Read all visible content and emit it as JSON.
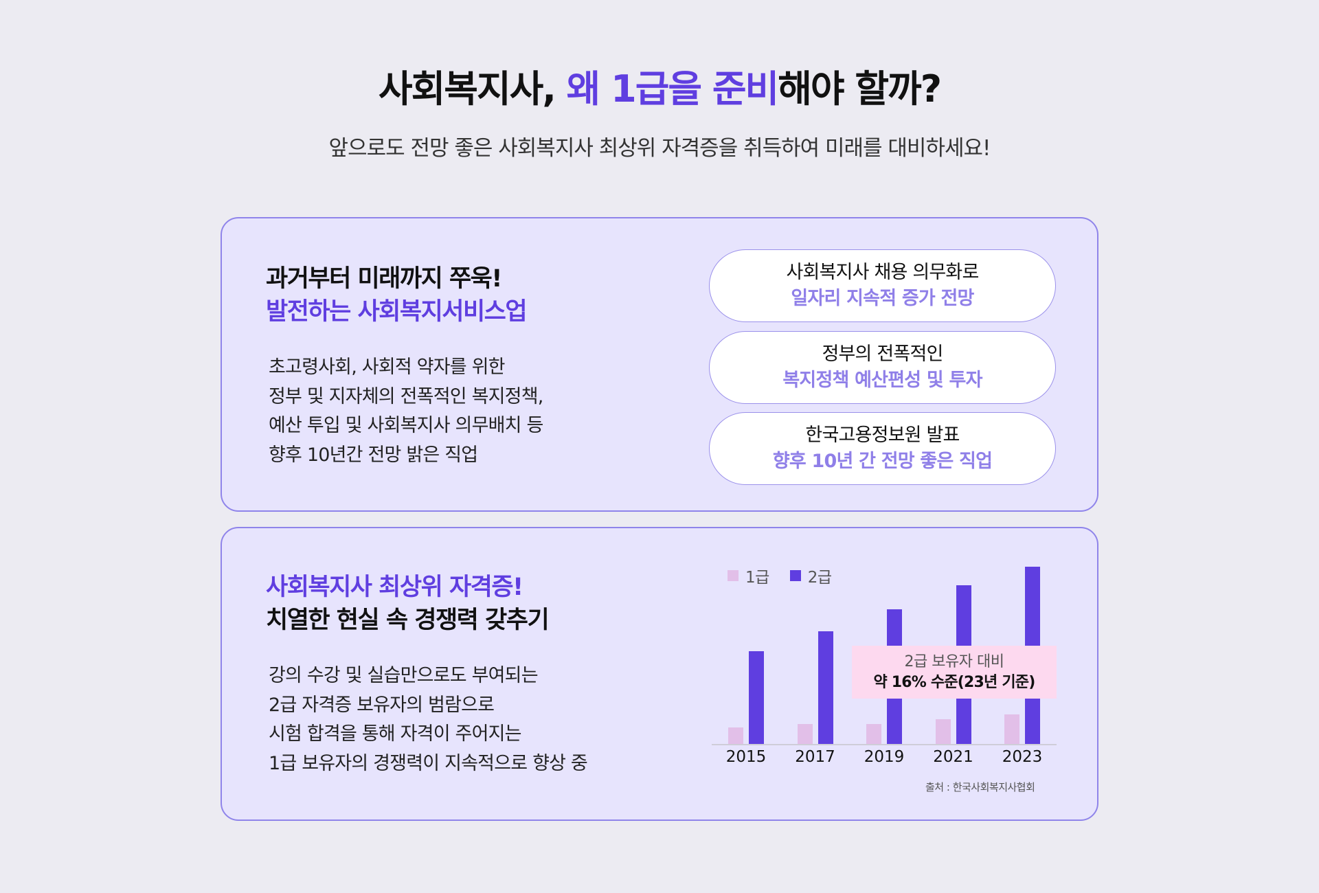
{
  "header": {
    "title_prefix": "사회복지사, ",
    "title_accent": "왜 1급을 준비",
    "title_suffix": "해야 할까?",
    "subtitle": "앞으로도 전망 좋은 사회복지사 최상위 자격증을 취득하여 미래를 대비하세요!"
  },
  "card1": {
    "heading_line1": "과거부터 미래까지 쭈욱!",
    "heading_line2": "발전하는 사회복지서비스업",
    "body_lines": [
      "초고령사회, 사회적 약자를 위한",
      "정부 및 지자체의 전폭적인 복지정책,",
      "예산 투입 및 사회복지사 의무배치 등",
      "향후 10년간 전망 밝은 직업"
    ],
    "pills": [
      {
        "line1": "사회복지사 채용 의무화로",
        "line2": "일자리 지속적 증가 전망"
      },
      {
        "line1": "정부의 전폭적인",
        "line2": "복지정책 예산편성 및 투자"
      },
      {
        "line1": "한국고용정보원 발표",
        "line2": "향후 10년 간 전망 좋은 직업"
      }
    ]
  },
  "card2": {
    "heading_line1": "사회복지사 최상위 자격증!",
    "heading_line2": "치열한 현실 속 경쟁력 갖추기",
    "body_lines": [
      "강의 수강 및 실습만으로도 부여되는",
      "2급 자격증 보유자의 범람으로",
      "시험 합격을 통해 자격이 주어지는",
      "1급 보유자의 경쟁력이 지속적으로 향상 중"
    ],
    "callout_line1": "2급 보유자 대비",
    "callout_line2": "약 16% 수준(23년 기준)",
    "source": "출처 : 한국사회복지사협회"
  },
  "colors": {
    "accent": "#5f3ee0",
    "level1_bar": "#e2bfe8",
    "level2_bar": "#5f3ee0",
    "card_bg": "#e7e4fd",
    "card_border": "#8f84ea",
    "callout_bg": "#fdd9ef",
    "page_bg": "#ecebf2"
  },
  "chart_data": {
    "type": "bar",
    "title": "",
    "categories": [
      "2015",
      "2017",
      "2019",
      "2021",
      "2023"
    ],
    "series": [
      {
        "name": "1급",
        "color": "#e2bfe8",
        "values": [
          25,
          30,
          30,
          37,
          44
        ]
      },
      {
        "name": "2급",
        "color": "#5f3ee0",
        "values": [
          136,
          165,
          197,
          232,
          259
        ]
      }
    ],
    "xlabel": "",
    "ylabel": "",
    "y_axis_shown": false,
    "grid": false,
    "legend_position": "top-left",
    "values_note": "relative bar heights in pixels (no y-axis scale shown)",
    "annotation": "2급 보유자 대비 약 16% 수준(23년 기준)",
    "source": "출처 : 한국사회복지사협회"
  }
}
